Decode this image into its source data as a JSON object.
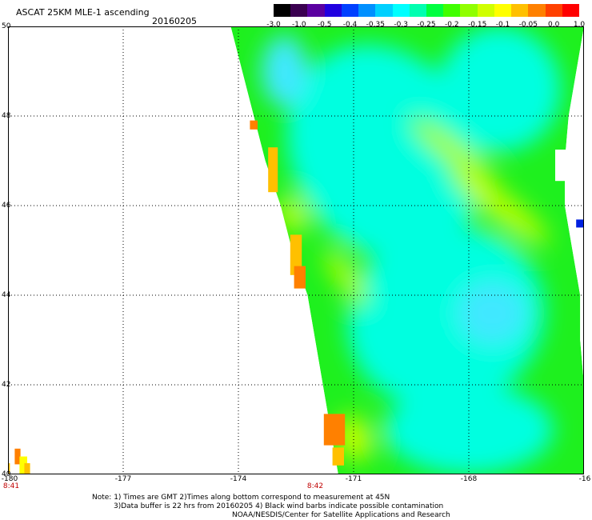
{
  "title": "ASCAT 25KM MLE-1 ascending",
  "date": "20160205",
  "colorbar": {
    "labels": [
      "-3.0",
      "-1.0",
      "-0.5",
      "-0.4",
      "-0.35",
      "-0.3",
      "-0.25",
      "-0.2",
      "-0.15",
      "-0.1",
      "-0.05",
      "0.0",
      "1.0"
    ],
    "colors": [
      "#000000",
      "#3a0050",
      "#5a00a0",
      "#2000e0",
      "#0040ff",
      "#0090ff",
      "#00d0ff",
      "#00ffff",
      "#00ffb0",
      "#00ff40",
      "#40ff00",
      "#90ff00",
      "#d0ff00",
      "#ffff00",
      "#ffc000",
      "#ff8000",
      "#ff4000",
      "#ff0000"
    ]
  },
  "map": {
    "lat_labels": [
      "50",
      "48",
      "46",
      "44",
      "42",
      "40"
    ],
    "lon_labels": [
      "-180",
      "-177",
      "-174",
      "-171",
      "-168",
      "-16"
    ],
    "time_labels": [
      {
        "text": "8:41",
        "lon": -180
      },
      {
        "text": "8:42",
        "lon": -172
      }
    ],
    "lon_range": [
      -180,
      -165
    ],
    "lat_range": [
      40,
      50
    ],
    "swath": {
      "left_edge": [
        [
          50,
          -174.2
        ],
        [
          48,
          -173.6
        ],
        [
          47,
          -173.3
        ],
        [
          46,
          -172.9
        ],
        [
          45,
          -172.6
        ],
        [
          44,
          -172.2
        ],
        [
          43,
          -172.0
        ],
        [
          42,
          -171.8
        ],
        [
          41,
          -171.6
        ],
        [
          40,
          -171.4
        ]
      ],
      "right_edge": [
        [
          50,
          -165.0
        ],
        [
          48,
          -165.4
        ],
        [
          47,
          -165.5
        ],
        [
          46,
          -165.5
        ],
        [
          45,
          -165.3
        ],
        [
          44,
          -165.1
        ],
        [
          43,
          -165.1
        ],
        [
          42,
          -165.0
        ],
        [
          40,
          -165.0
        ]
      ]
    },
    "features": [
      {
        "type": "cyan",
        "lat": 47.2,
        "lon": -170.2,
        "rx": 2.4,
        "ry": 2.5,
        "rot": -30
      },
      {
        "type": "cyan",
        "lat": 43.5,
        "lon": -168.6,
        "rx": 2.6,
        "ry": 2.0,
        "rot": -20
      },
      {
        "type": "cyan",
        "lat": 48.6,
        "lon": -167.2,
        "rx": 1.6,
        "ry": 1.4,
        "rot": 0
      },
      {
        "type": "cyan",
        "lat": 41.0,
        "lon": -168.0,
        "rx": 2.2,
        "ry": 1.0,
        "rot": 0
      },
      {
        "type": "lightcyan",
        "lat": 49.0,
        "lon": -172.8,
        "rx": 0.6,
        "ry": 0.8,
        "rot": 0
      },
      {
        "type": "lightcyan",
        "lat": 43.6,
        "lon": -167.4,
        "rx": 0.9,
        "ry": 0.7,
        "rot": 0
      },
      {
        "type": "band",
        "lat": 46.0,
        "lon": -167.2,
        "rx": 1.6,
        "ry": 0.28,
        "rot": 38
      },
      {
        "type": "band",
        "lat": 47.2,
        "lon": -168.4,
        "rx": 1.4,
        "ry": 0.22,
        "rot": 38
      },
      {
        "type": "band",
        "lat": 44.4,
        "lon": -171.2,
        "rx": 0.9,
        "ry": 0.2,
        "rot": 55
      },
      {
        "type": "band",
        "lat": 45.8,
        "lon": -172.6,
        "rx": 0.5,
        "ry": 0.3,
        "rot": 60
      },
      {
        "type": "band",
        "lat": 40.8,
        "lon": -171.0,
        "rx": 0.6,
        "ry": 0.4,
        "rot": 70
      }
    ],
    "edge_colors": [
      {
        "lat": 46.8,
        "lon": -173.1,
        "w": 0.25,
        "h": 1.0,
        "color": "#ffc000"
      },
      {
        "lat": 44.9,
        "lon": -172.5,
        "w": 0.3,
        "h": 0.9,
        "color": "#ffc000"
      },
      {
        "lat": 44.4,
        "lon": -172.4,
        "w": 0.3,
        "h": 0.5,
        "color": "#ff8000"
      },
      {
        "lat": 47.8,
        "lon": -173.6,
        "w": 0.2,
        "h": 0.2,
        "color": "#ff8000"
      },
      {
        "lat": 41.0,
        "lon": -171.5,
        "w": 0.55,
        "h": 0.7,
        "color": "#ff8000"
      },
      {
        "lat": 40.4,
        "lon": -171.4,
        "w": 0.3,
        "h": 0.4,
        "color": "#ffc000"
      },
      {
        "lat": 40.4,
        "lon": -179.75,
        "w": 0.15,
        "h": 0.35,
        "color": "#ff8000"
      },
      {
        "lat": 40.2,
        "lon": -179.6,
        "w": 0.2,
        "h": 0.4,
        "color": "#ffff00"
      },
      {
        "lat": 40.1,
        "lon": -179.5,
        "w": 0.15,
        "h": 0.3,
        "color": "#ffc000"
      },
      {
        "lat": 40.1,
        "lon": -180.0,
        "w": 0.1,
        "h": 0.3,
        "color": "#ffc000"
      }
    ],
    "gaps": [
      {
        "lat": 46.9,
        "lon": -165.5,
        "w": 0.5,
        "h": 0.7
      },
      {
        "lat": 44.8,
        "lon": -165.1,
        "w": 0.2,
        "h": 0.5
      }
    ],
    "outlier": {
      "lat": 45.6,
      "lon": -165.1,
      "color": "#0020e0"
    }
  },
  "notes": [
    "Note: 1) Times are GMT 2)Times along bottom correspond to measurement at 45N",
    "3)Data buffer is 22 hrs from 20160205 4) Black wind barbs indicate possible contamination",
    "NOAA/NESDIS/Center for Satellite Applications and Research"
  ]
}
